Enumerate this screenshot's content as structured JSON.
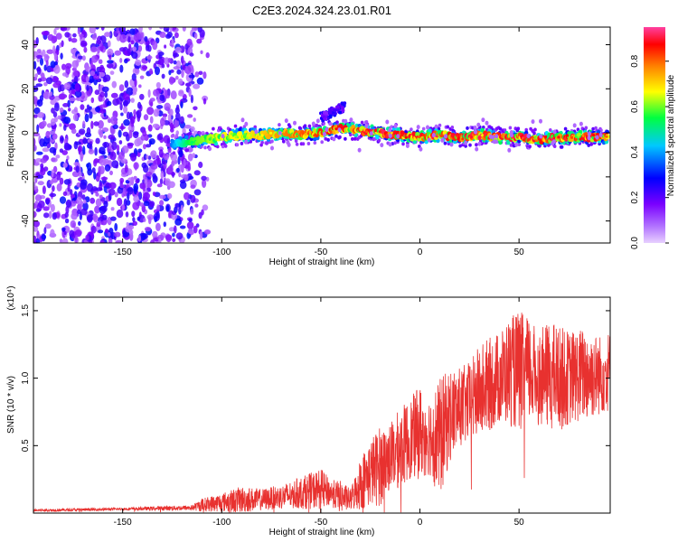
{
  "title": "C2E3.2024.324.23.01.R01",
  "chart_data": [
    {
      "type": "heatmap",
      "xlabel": "Height of straight line (km)",
      "ylabel": "Frequency (Hz)",
      "xlim": [
        -195,
        96
      ],
      "ylim": [
        -50,
        48
      ],
      "x_ticks": [
        -150,
        -100,
        -50,
        0,
        50
      ],
      "y_ticks": [
        -40,
        -20,
        0,
        20,
        40
      ],
      "colorbar": {
        "label": "Normalized spectral amplitude",
        "range": [
          0.0,
          0.95
        ],
        "ticks": [
          0.0,
          0.2,
          0.4,
          0.6,
          0.8
        ],
        "tick_labels": [
          "0.0",
          "0.2",
          "0.4",
          "0.6",
          "0.8"
        ],
        "colors": [
          "#e8d0ff",
          "#7a00ff",
          "#0000ff",
          "#00e0ff",
          "#00ff40",
          "#ffff00",
          "#ff8000",
          "#ff0000",
          "#ff40a0"
        ]
      },
      "noise_region": {
        "x": [
          -195,
          -115
        ],
        "freq": [
          -50,
          48
        ],
        "amplitude": [
          0.05,
          0.25
        ]
      },
      "signal_ridge": {
        "x": [
          -125,
          -115,
          -100,
          -90,
          -80,
          -70,
          -60,
          -50,
          -40,
          -30,
          -20,
          -10,
          0,
          10,
          20,
          30,
          40,
          50,
          60,
          70,
          80,
          90,
          95
        ],
        "freq": [
          -5,
          -4,
          -2,
          -1,
          -1,
          0,
          -1,
          0,
          2,
          1,
          0,
          -1,
          -2,
          -1,
          -2,
          -1,
          -2,
          -2,
          -3,
          -2,
          -2,
          -2,
          -2
        ],
        "peak_amplitude": [
          0.3,
          0.5,
          0.6,
          0.6,
          0.65,
          0.7,
          0.75,
          0.8,
          0.85,
          0.85,
          0.9,
          0.85,
          0.85,
          0.9,
          0.85,
          0.9,
          0.85,
          0.9,
          0.85,
          0.9,
          0.85,
          0.85,
          0.8
        ]
      },
      "secondary_feature": {
        "x": [
          -50,
          -38
        ],
        "freq": [
          7,
          12
        ],
        "amplitude": 0.2
      }
    },
    {
      "type": "line",
      "xlabel": "Height of straight line (km)",
      "ylabel": "SNR (10 * v/v)",
      "scale_label": "(x10⁴)",
      "color": "#e8312f",
      "xlim": [
        -195,
        96
      ],
      "ylim": [
        0,
        1.6
      ],
      "x_ticks": [
        -150,
        -100,
        -50,
        0,
        50
      ],
      "y_ticks": [
        0.5,
        1.0,
        1.5
      ],
      "y_tick_labels": [
        "0.5",
        "1.0",
        "1.5"
      ],
      "envelope": {
        "x": [
          -195,
          -150,
          -115,
          -110,
          -100,
          -90,
          -80,
          -70,
          -60,
          -50,
          -45,
          -40,
          -35,
          -30,
          -25,
          -20,
          -15,
          -10,
          -5,
          0,
          5,
          10,
          15,
          20,
          25,
          30,
          35,
          40,
          45,
          50,
          55,
          60,
          65,
          70,
          75,
          80,
          85,
          90,
          95
        ],
        "base": [
          0.02,
          0.03,
          0.04,
          0.06,
          0.08,
          0.1,
          0.1,
          0.12,
          0.15,
          0.18,
          0.15,
          0.12,
          0.1,
          0.22,
          0.3,
          0.35,
          0.42,
          0.48,
          0.55,
          0.6,
          0.58,
          0.55,
          0.72,
          0.78,
          0.82,
          0.9,
          0.95,
          1.0,
          1.05,
          1.05,
          1.05,
          1.0,
          1.02,
          1.0,
          1.0,
          1.02,
          1.03,
          1.02,
          1.05
        ],
        "spread": [
          0.01,
          0.01,
          0.02,
          0.05,
          0.07,
          0.1,
          0.08,
          0.09,
          0.12,
          0.15,
          0.1,
          0.12,
          0.08,
          0.2,
          0.25,
          0.3,
          0.25,
          0.3,
          0.3,
          0.35,
          0.3,
          0.45,
          0.35,
          0.3,
          0.3,
          0.35,
          0.35,
          0.35,
          0.4,
          0.45,
          0.4,
          0.35,
          0.4,
          0.4,
          0.35,
          0.35,
          0.35,
          0.3,
          0.3
        ]
      }
    }
  ]
}
